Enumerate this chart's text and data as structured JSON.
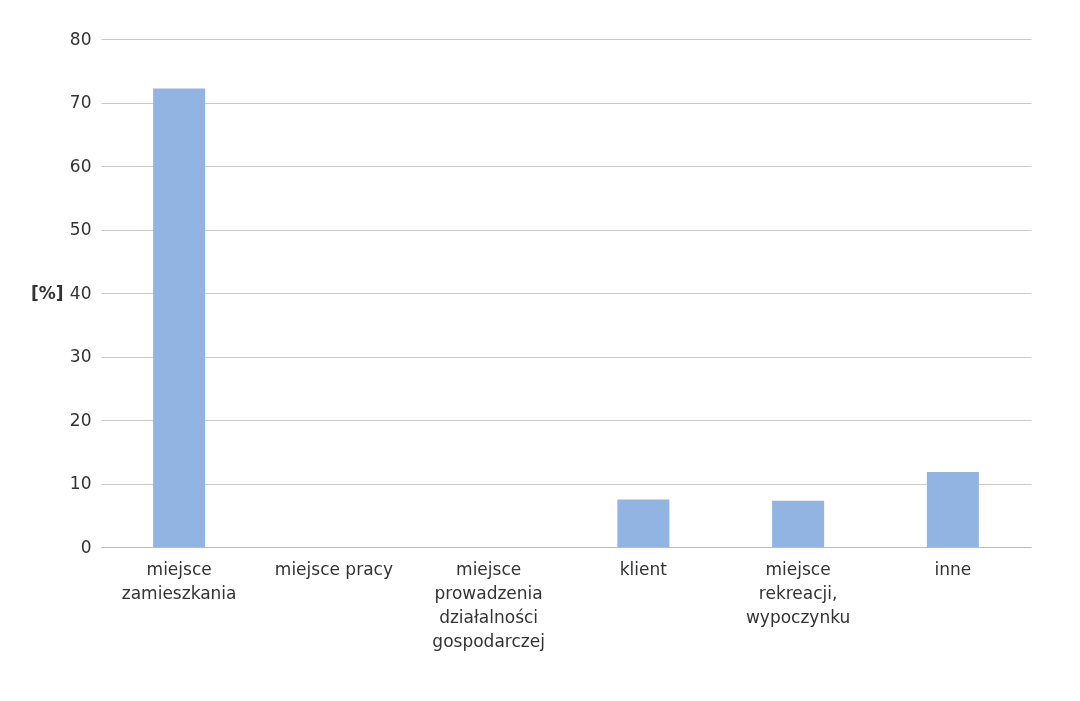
{
  "chart_data": {
    "type": "bar",
    "ylabel": "[%]",
    "categories": [
      "miejsce zamieszkania",
      "miejsce pracy",
      "miejsce prowadzenia działalności gospodarczej",
      "klient",
      "miejsce rekreacji, wypoczynku",
      "inne"
    ],
    "values": [
      72.2,
      0,
      0,
      7.5,
      7.3,
      11.8
    ],
    "color": "#92b4e3",
    "ylim": [
      0,
      80
    ],
    "yticks": [
      0,
      10,
      20,
      30,
      40,
      50,
      60,
      70,
      80
    ],
    "grid": "y"
  }
}
